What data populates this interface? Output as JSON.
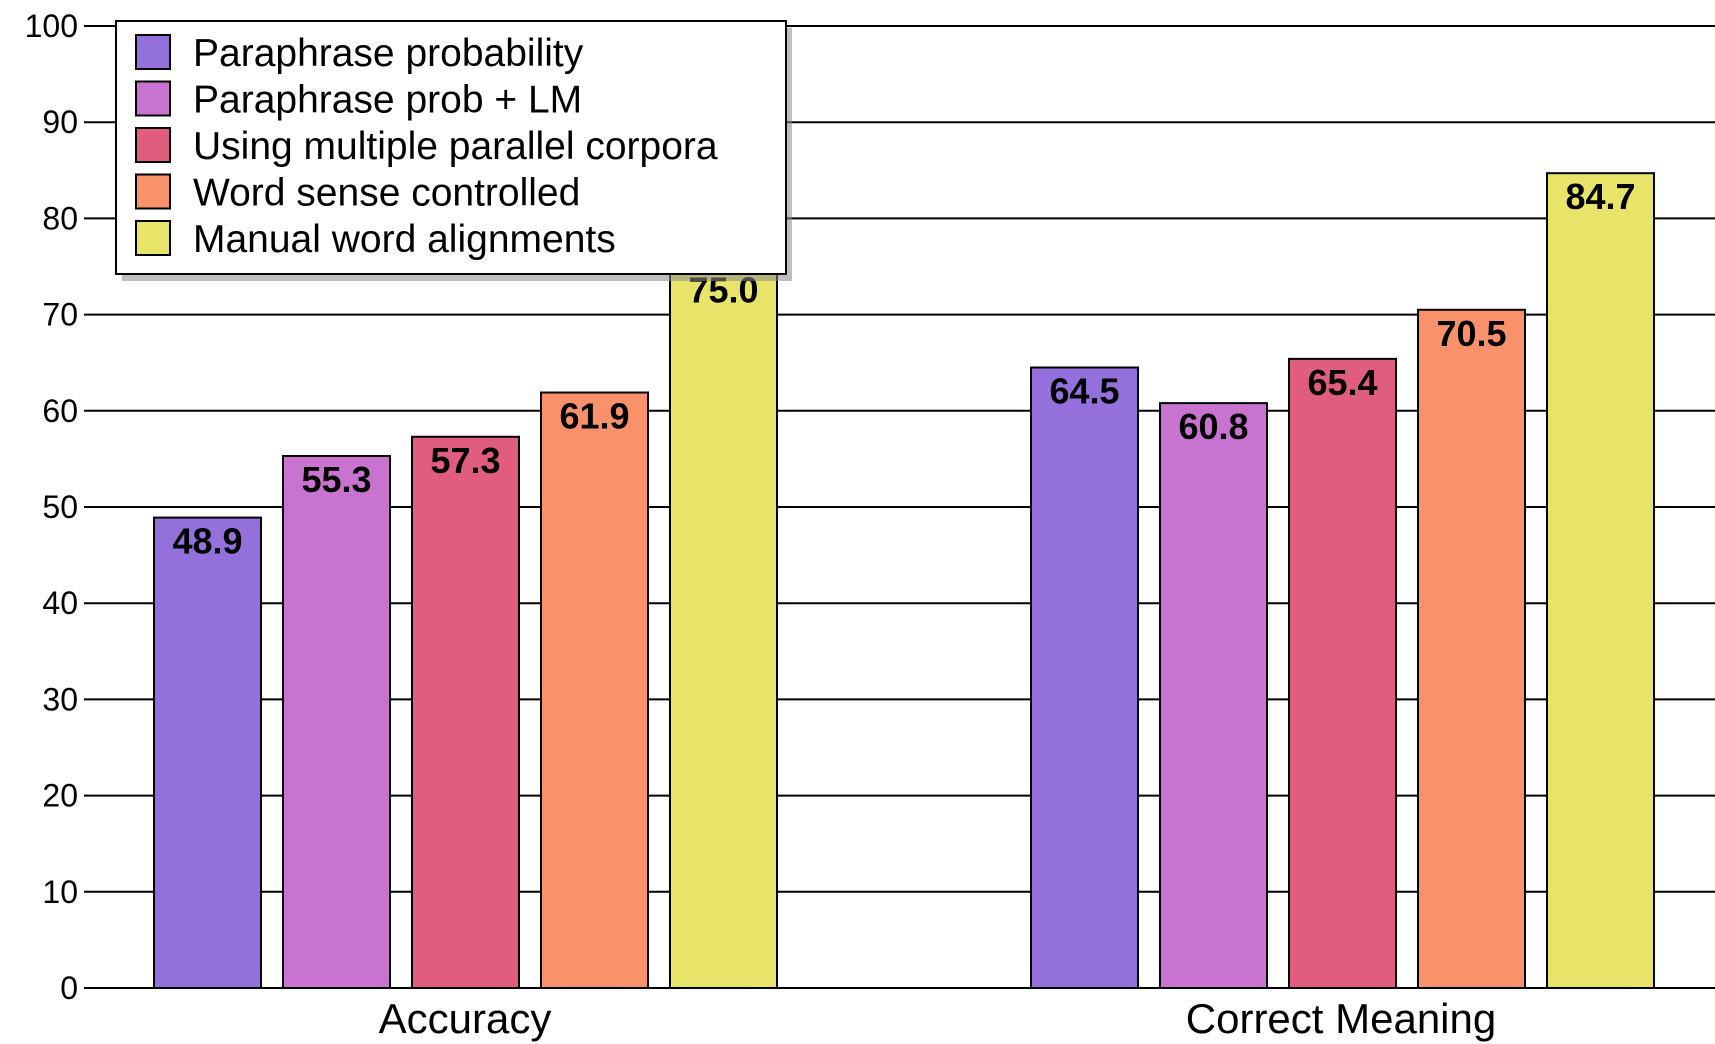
{
  "chart_data": {
    "type": "bar",
    "categories": [
      "Accuracy",
      "Correct Meaning"
    ],
    "series": [
      {
        "name": "Paraphrase probability",
        "color": "#9370db",
        "values": [
          48.9,
          64.5
        ],
        "labels": [
          "48.9",
          "64.5"
        ]
      },
      {
        "name": "Paraphrase prob + LM",
        "color": "#c873cf",
        "values": [
          55.3,
          60.8
        ],
        "labels": [
          "55.3",
          "60.8"
        ]
      },
      {
        "name": "Using multiple parallel corpora",
        "color": "#e15d7f",
        "values": [
          57.3,
          65.4
        ],
        "labels": [
          "57.3",
          "65.4"
        ]
      },
      {
        "name": "Word sense controlled",
        "color": "#f9916a",
        "values": [
          61.9,
          70.5
        ],
        "labels": [
          "61.9",
          "70.5"
        ]
      },
      {
        "name": "Manual word alignments",
        "color": "#e8e46a",
        "values": [
          75.0,
          84.7
        ],
        "labels": [
          "75.0",
          "84.7"
        ]
      }
    ],
    "yticks": [
      "0",
      "10",
      "20",
      "30",
      "40",
      "50",
      "60",
      "70",
      "80",
      "90",
      "100"
    ],
    "ylim": [
      0,
      100
    ],
    "grid": true,
    "legend_position": "top-left"
  }
}
